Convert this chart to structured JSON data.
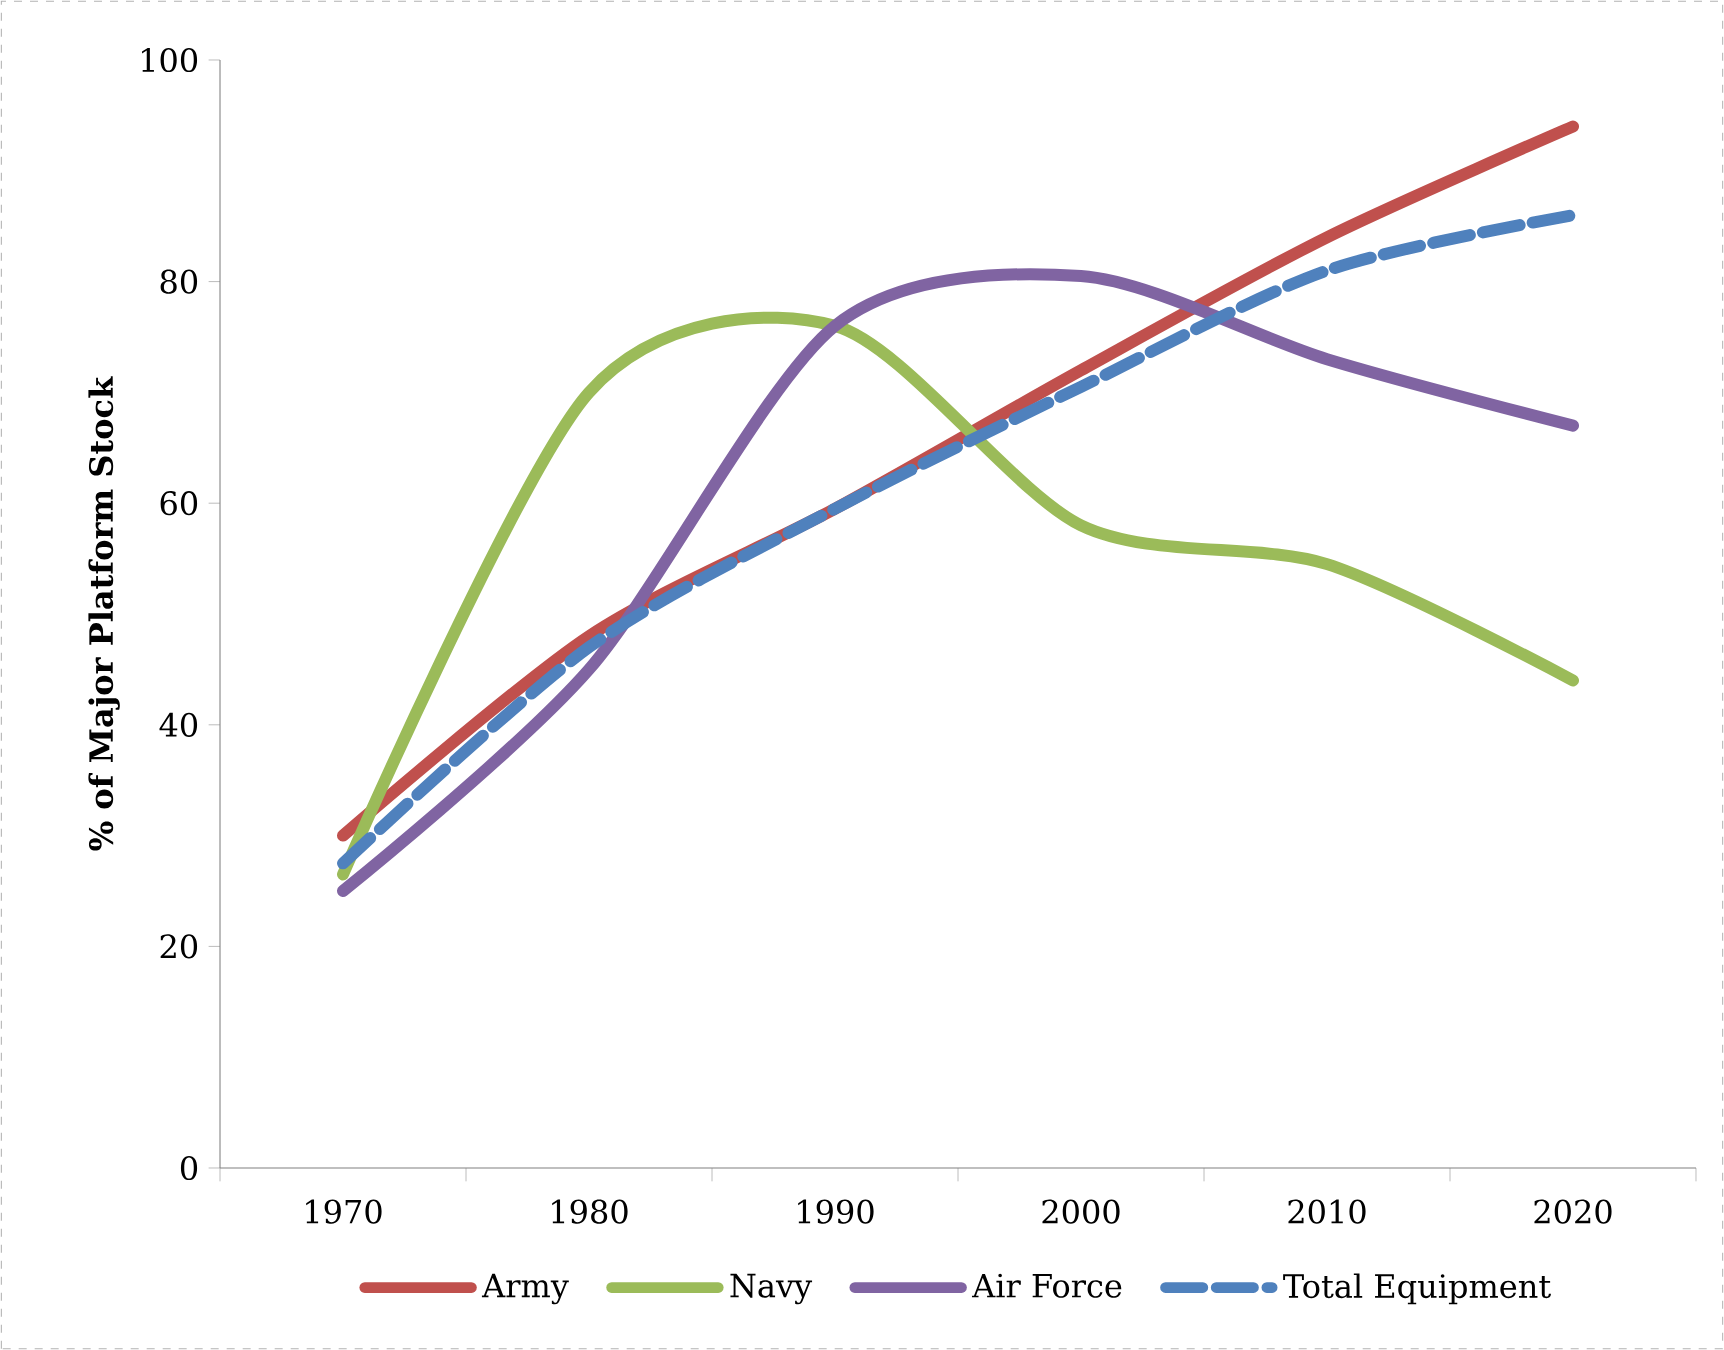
{
  "chart_data": {
    "type": "line",
    "ylabel": "% of Major Platform Stock",
    "categories": [
      "1970",
      "1980",
      "1990",
      "2000",
      "2010",
      "2020"
    ],
    "series": [
      {
        "name": "Army",
        "color": "#c0504d",
        "values": [
          30,
          48,
          59.5,
          72,
          84,
          94
        ]
      },
      {
        "name": "Navy",
        "color": "#9bbb59",
        "values": [
          26.5,
          70,
          76,
          58,
          54.5,
          44
        ]
      },
      {
        "name": "Air Force",
        "color": "#8064a2",
        "values": [
          25,
          45,
          76,
          80.5,
          73,
          67
        ]
      },
      {
        "name": "Total Equipment",
        "color": "#4f81bd",
        "values": [
          27.5,
          47,
          59.5,
          70.5,
          81,
          86
        ],
        "line_style": "dashed"
      }
    ],
    "ylim": [
      0,
      100
    ],
    "yticks": [
      0,
      20,
      40,
      60,
      80,
      100
    ],
    "legend": "bottom",
    "marker": "none",
    "grid": false
  }
}
